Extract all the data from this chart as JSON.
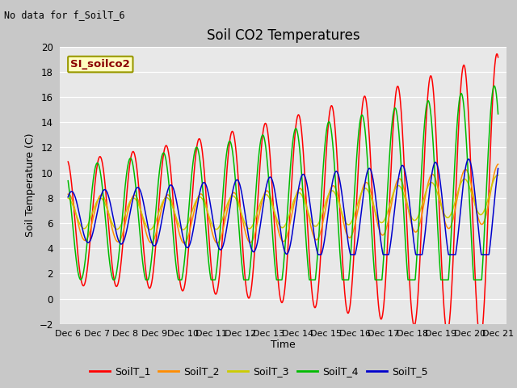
{
  "title": "Soil CO2 Temperatures",
  "ylabel": "Soil Temperature (C)",
  "xlabel": "Time",
  "no_data_text": "No data for f_SoilT_6",
  "annotation_text": "SI_soilco2",
  "ylim": [
    -2,
    20
  ],
  "yticks": [
    -2,
    0,
    2,
    4,
    6,
    8,
    10,
    12,
    14,
    16,
    18,
    20
  ],
  "fig_bg_color": "#c8c8c8",
  "plot_bg_color": "#e8e8e8",
  "grid_color": "#ffffff",
  "line_colors": {
    "SoilT_1": "#ff0000",
    "SoilT_2": "#ff8c00",
    "SoilT_3": "#cccc00",
    "SoilT_4": "#00bb00",
    "SoilT_5": "#0000cc"
  },
  "series_labels": [
    "SoilT_1",
    "SoilT_2",
    "SoilT_3",
    "SoilT_4",
    "SoilT_5"
  ]
}
